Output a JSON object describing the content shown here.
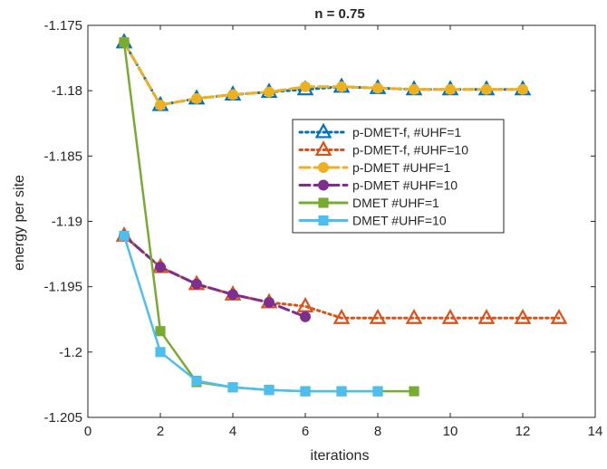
{
  "chart_data": {
    "type": "line",
    "title": "n = 0.75",
    "xlabel": "iterations",
    "ylabel": "energy per site",
    "xlim": [
      0,
      14
    ],
    "ylim": [
      -1.205,
      -1.175
    ],
    "xticks": [
      0,
      2,
      4,
      6,
      8,
      10,
      12,
      14
    ],
    "xtick_labels": [
      "0",
      "2",
      "4",
      "6",
      "8",
      "10",
      "12",
      "14"
    ],
    "yticks": [
      -1.175,
      -1.18,
      -1.185,
      -1.19,
      -1.195,
      -1.2,
      -1.205
    ],
    "ytick_labels": [
      "-1.175",
      "-1.18",
      "-1.185",
      "-1.19",
      "-1.195",
      "-1.2",
      "-1.205"
    ],
    "legend_position": "upper-right",
    "series": [
      {
        "name": "p-DMET-f, #UHF=1",
        "color": "#0072BD",
        "dash": "dotted",
        "marker": "triangle",
        "x": [
          1,
          2,
          3,
          4,
          5,
          6,
          7,
          8,
          9,
          10,
          11,
          12
        ],
        "y": [
          -1.1763,
          -1.1811,
          -1.1806,
          -1.1803,
          -1.1801,
          -1.1799,
          -1.1797,
          -1.1798,
          -1.1799,
          -1.1799,
          -1.1799,
          -1.1799
        ]
      },
      {
        "name": "p-DMET-f, #UHF=10",
        "color": "#D95319",
        "dash": "dotted",
        "marker": "triangle",
        "x": [
          1,
          2,
          3,
          4,
          5,
          6,
          7,
          8,
          9,
          10,
          11,
          12,
          13
        ],
        "y": [
          -1.1911,
          -1.1935,
          -1.1948,
          -1.1956,
          -1.1962,
          -1.1965,
          -1.1974,
          -1.1974,
          -1.1974,
          -1.1974,
          -1.1974,
          -1.1974,
          -1.1974
        ]
      },
      {
        "name": "p-DMET #UHF=1",
        "color": "#EDB120",
        "dash": "dashed",
        "marker": "circle",
        "x": [
          1,
          2,
          3,
          4,
          5,
          6,
          7,
          8,
          9,
          10,
          11,
          12
        ],
        "y": [
          -1.1763,
          -1.1811,
          -1.1806,
          -1.1803,
          -1.1801,
          -1.1797,
          -1.1797,
          -1.1798,
          -1.1799,
          -1.1799,
          -1.1799,
          -1.1799
        ]
      },
      {
        "name": "p-DMET #UHF=10",
        "color": "#7E2F8E",
        "dash": "dashed",
        "marker": "circle",
        "x": [
          1,
          2,
          3,
          4,
          5,
          6
        ],
        "y": [
          -1.1911,
          -1.1935,
          -1.1948,
          -1.1956,
          -1.1962,
          -1.1973
        ]
      },
      {
        "name": "DMET #UHF=1",
        "color": "#77AC30",
        "dash": "solid",
        "marker": "square",
        "x": [
          1,
          2,
          3,
          4,
          5,
          6,
          7,
          8,
          9
        ],
        "y": [
          -1.1763,
          -1.1984,
          -1.2023,
          -1.2027,
          -1.2029,
          -1.203,
          -1.203,
          -1.203,
          -1.203
        ]
      },
      {
        "name": "DMET #UHF=10",
        "color": "#4DBEEE",
        "dash": "solid",
        "marker": "square",
        "x": [
          1,
          2,
          3,
          4,
          5,
          6,
          7,
          8
        ],
        "y": [
          -1.1911,
          -1.2,
          -1.2022,
          -1.2027,
          -1.2029,
          -1.203,
          -1.203,
          -1.203
        ]
      }
    ]
  }
}
